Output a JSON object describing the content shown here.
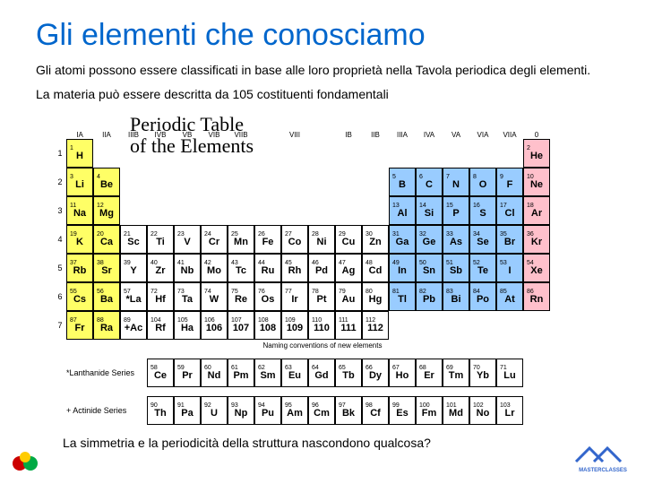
{
  "title": "Gli elementi che conosciamo",
  "intro_line1": "Gli atomi possono essere classificati in base alle loro proprietà nella Tavola periodica degli elementi.",
  "intro_line2": "La materia può essere descritta da 105 costituenti fondamentali",
  "pt_title_line1": "Periodic Table",
  "pt_title_line2": "of the Elements",
  "group_labels_top": [
    "IA",
    "IIA",
    "IIIB",
    "IVB",
    "VB",
    "VIB",
    "VIIB",
    "VIII",
    "IB",
    "IIB",
    "IIIA",
    "IVA",
    "VA",
    "VIA",
    "VIIA",
    "0"
  ],
  "periods": [
    "1",
    "2",
    "3",
    "4",
    "5",
    "6",
    "7"
  ],
  "colors": {
    "yellow": "#ffff66",
    "pink": "#ffc0cb",
    "blue": "#99ccff",
    "white": "#ffffff"
  },
  "elements": [
    {
      "r": 1,
      "c": 1,
      "n": 1,
      "s": "H",
      "col": "yellow"
    },
    {
      "r": 1,
      "c": 18,
      "n": 2,
      "s": "He",
      "col": "pink"
    },
    {
      "r": 2,
      "c": 1,
      "n": 3,
      "s": "Li",
      "col": "yellow"
    },
    {
      "r": 2,
      "c": 2,
      "n": 4,
      "s": "Be",
      "col": "yellow"
    },
    {
      "r": 2,
      "c": 13,
      "n": 5,
      "s": "B",
      "col": "blue"
    },
    {
      "r": 2,
      "c": 14,
      "n": 6,
      "s": "C",
      "col": "blue"
    },
    {
      "r": 2,
      "c": 15,
      "n": 7,
      "s": "N",
      "col": "blue"
    },
    {
      "r": 2,
      "c": 16,
      "n": 8,
      "s": "O",
      "col": "blue"
    },
    {
      "r": 2,
      "c": 17,
      "n": 9,
      "s": "F",
      "col": "blue"
    },
    {
      "r": 2,
      "c": 18,
      "n": 10,
      "s": "Ne",
      "col": "pink"
    },
    {
      "r": 3,
      "c": 1,
      "n": 11,
      "s": "Na",
      "col": "yellow"
    },
    {
      "r": 3,
      "c": 2,
      "n": 12,
      "s": "Mg",
      "col": "yellow"
    },
    {
      "r": 3,
      "c": 13,
      "n": 13,
      "s": "Al",
      "col": "blue"
    },
    {
      "r": 3,
      "c": 14,
      "n": 14,
      "s": "Si",
      "col": "blue"
    },
    {
      "r": 3,
      "c": 15,
      "n": 15,
      "s": "P",
      "col": "blue"
    },
    {
      "r": 3,
      "c": 16,
      "n": 16,
      "s": "S",
      "col": "blue"
    },
    {
      "r": 3,
      "c": 17,
      "n": 17,
      "s": "Cl",
      "col": "blue"
    },
    {
      "r": 3,
      "c": 18,
      "n": 18,
      "s": "Ar",
      "col": "pink"
    },
    {
      "r": 4,
      "c": 1,
      "n": 19,
      "s": "K",
      "col": "yellow"
    },
    {
      "r": 4,
      "c": 2,
      "n": 20,
      "s": "Ca",
      "col": "yellow"
    },
    {
      "r": 4,
      "c": 3,
      "n": 21,
      "s": "Sc",
      "col": "white"
    },
    {
      "r": 4,
      "c": 4,
      "n": 22,
      "s": "Ti",
      "col": "white"
    },
    {
      "r": 4,
      "c": 5,
      "n": 23,
      "s": "V",
      "col": "white"
    },
    {
      "r": 4,
      "c": 6,
      "n": 24,
      "s": "Cr",
      "col": "white"
    },
    {
      "r": 4,
      "c": 7,
      "n": 25,
      "s": "Mn",
      "col": "white"
    },
    {
      "r": 4,
      "c": 8,
      "n": 26,
      "s": "Fe",
      "col": "white"
    },
    {
      "r": 4,
      "c": 9,
      "n": 27,
      "s": "Co",
      "col": "white"
    },
    {
      "r": 4,
      "c": 10,
      "n": 28,
      "s": "Ni",
      "col": "white"
    },
    {
      "r": 4,
      "c": 11,
      "n": 29,
      "s": "Cu",
      "col": "white"
    },
    {
      "r": 4,
      "c": 12,
      "n": 30,
      "s": "Zn",
      "col": "white"
    },
    {
      "r": 4,
      "c": 13,
      "n": 31,
      "s": "Ga",
      "col": "blue"
    },
    {
      "r": 4,
      "c": 14,
      "n": 32,
      "s": "Ge",
      "col": "blue"
    },
    {
      "r": 4,
      "c": 15,
      "n": 33,
      "s": "As",
      "col": "blue"
    },
    {
      "r": 4,
      "c": 16,
      "n": 34,
      "s": "Se",
      "col": "blue"
    },
    {
      "r": 4,
      "c": 17,
      "n": 35,
      "s": "Br",
      "col": "blue"
    },
    {
      "r": 4,
      "c": 18,
      "n": 36,
      "s": "Kr",
      "col": "pink"
    },
    {
      "r": 5,
      "c": 1,
      "n": 37,
      "s": "Rb",
      "col": "yellow"
    },
    {
      "r": 5,
      "c": 2,
      "n": 38,
      "s": "Sr",
      "col": "yellow"
    },
    {
      "r": 5,
      "c": 3,
      "n": 39,
      "s": "Y",
      "col": "white"
    },
    {
      "r": 5,
      "c": 4,
      "n": 40,
      "s": "Zr",
      "col": "white"
    },
    {
      "r": 5,
      "c": 5,
      "n": 41,
      "s": "Nb",
      "col": "white"
    },
    {
      "r": 5,
      "c": 6,
      "n": 42,
      "s": "Mo",
      "col": "white"
    },
    {
      "r": 5,
      "c": 7,
      "n": 43,
      "s": "Tc",
      "col": "white"
    },
    {
      "r": 5,
      "c": 8,
      "n": 44,
      "s": "Ru",
      "col": "white"
    },
    {
      "r": 5,
      "c": 9,
      "n": 45,
      "s": "Rh",
      "col": "white"
    },
    {
      "r": 5,
      "c": 10,
      "n": 46,
      "s": "Pd",
      "col": "white"
    },
    {
      "r": 5,
      "c": 11,
      "n": 47,
      "s": "Ag",
      "col": "white"
    },
    {
      "r": 5,
      "c": 12,
      "n": 48,
      "s": "Cd",
      "col": "white"
    },
    {
      "r": 5,
      "c": 13,
      "n": 49,
      "s": "In",
      "col": "blue"
    },
    {
      "r": 5,
      "c": 14,
      "n": 50,
      "s": "Sn",
      "col": "blue"
    },
    {
      "r": 5,
      "c": 15,
      "n": 51,
      "s": "Sb",
      "col": "blue"
    },
    {
      "r": 5,
      "c": 16,
      "n": 52,
      "s": "Te",
      "col": "blue"
    },
    {
      "r": 5,
      "c": 17,
      "n": 53,
      "s": "I",
      "col": "blue"
    },
    {
      "r": 5,
      "c": 18,
      "n": 54,
      "s": "Xe",
      "col": "pink"
    },
    {
      "r": 6,
      "c": 1,
      "n": 55,
      "s": "Cs",
      "col": "yellow"
    },
    {
      "r": 6,
      "c": 2,
      "n": 56,
      "s": "Ba",
      "col": "yellow"
    },
    {
      "r": 6,
      "c": 3,
      "n": 57,
      "s": "*La",
      "col": "white"
    },
    {
      "r": 6,
      "c": 4,
      "n": 72,
      "s": "Hf",
      "col": "white"
    },
    {
      "r": 6,
      "c": 5,
      "n": 73,
      "s": "Ta",
      "col": "white"
    },
    {
      "r": 6,
      "c": 6,
      "n": 74,
      "s": "W",
      "col": "white"
    },
    {
      "r": 6,
      "c": 7,
      "n": 75,
      "s": "Re",
      "col": "white"
    },
    {
      "r": 6,
      "c": 8,
      "n": 76,
      "s": "Os",
      "col": "white"
    },
    {
      "r": 6,
      "c": 9,
      "n": 77,
      "s": "Ir",
      "col": "white"
    },
    {
      "r": 6,
      "c": 10,
      "n": 78,
      "s": "Pt",
      "col": "white"
    },
    {
      "r": 6,
      "c": 11,
      "n": 79,
      "s": "Au",
      "col": "white"
    },
    {
      "r": 6,
      "c": 12,
      "n": 80,
      "s": "Hg",
      "col": "white"
    },
    {
      "r": 6,
      "c": 13,
      "n": 81,
      "s": "Tl",
      "col": "blue"
    },
    {
      "r": 6,
      "c": 14,
      "n": 82,
      "s": "Pb",
      "col": "blue"
    },
    {
      "r": 6,
      "c": 15,
      "n": 83,
      "s": "Bi",
      "col": "blue"
    },
    {
      "r": 6,
      "c": 16,
      "n": 84,
      "s": "Po",
      "col": "blue"
    },
    {
      "r": 6,
      "c": 17,
      "n": 85,
      "s": "At",
      "col": "blue"
    },
    {
      "r": 6,
      "c": 18,
      "n": 86,
      "s": "Rn",
      "col": "pink"
    },
    {
      "r": 7,
      "c": 1,
      "n": 87,
      "s": "Fr",
      "col": "yellow"
    },
    {
      "r": 7,
      "c": 2,
      "n": 88,
      "s": "Ra",
      "col": "yellow"
    },
    {
      "r": 7,
      "c": 3,
      "n": 89,
      "s": "+Ac",
      "col": "white"
    },
    {
      "r": 7,
      "c": 4,
      "n": 104,
      "s": "Rf",
      "col": "white"
    },
    {
      "r": 7,
      "c": 5,
      "n": 105,
      "s": "Ha",
      "col": "white"
    },
    {
      "r": 7,
      "c": 6,
      "n": 106,
      "s": "106",
      "col": "white"
    },
    {
      "r": 7,
      "c": 7,
      "n": 107,
      "s": "107",
      "col": "white"
    },
    {
      "r": 7,
      "c": 8,
      "n": 108,
      "s": "108",
      "col": "white"
    },
    {
      "r": 7,
      "c": 9,
      "n": 109,
      "s": "109",
      "col": "white"
    },
    {
      "r": 7,
      "c": 10,
      "n": 110,
      "s": "110",
      "col": "white"
    },
    {
      "r": 7,
      "c": 11,
      "n": 111,
      "s": "111",
      "col": "white"
    },
    {
      "r": 7,
      "c": 12,
      "n": 112,
      "s": "112",
      "col": "white"
    }
  ],
  "lanth_label": "*Lanthanide Series",
  "actin_label": "+ Actinide Series",
  "lanthanides": [
    {
      "n": 58,
      "s": "Ce"
    },
    {
      "n": 59,
      "s": "Pr"
    },
    {
      "n": 60,
      "s": "Nd"
    },
    {
      "n": 61,
      "s": "Pm"
    },
    {
      "n": 62,
      "s": "Sm"
    },
    {
      "n": 63,
      "s": "Eu"
    },
    {
      "n": 64,
      "s": "Gd"
    },
    {
      "n": 65,
      "s": "Tb"
    },
    {
      "n": 66,
      "s": "Dy"
    },
    {
      "n": 67,
      "s": "Ho"
    },
    {
      "n": 68,
      "s": "Er"
    },
    {
      "n": 69,
      "s": "Tm"
    },
    {
      "n": 70,
      "s": "Yb"
    },
    {
      "n": 71,
      "s": "Lu"
    }
  ],
  "actinides": [
    {
      "n": 90,
      "s": "Th"
    },
    {
      "n": 91,
      "s": "Pa"
    },
    {
      "n": 92,
      "s": "U"
    },
    {
      "n": 93,
      "s": "Np"
    },
    {
      "n": 94,
      "s": "Pu"
    },
    {
      "n": 95,
      "s": "Am"
    },
    {
      "n": 96,
      "s": "Cm"
    },
    {
      "n": 97,
      "s": "Bk"
    },
    {
      "n": 98,
      "s": "Cf"
    },
    {
      "n": 99,
      "s": "Es"
    },
    {
      "n": 100,
      "s": "Fm"
    },
    {
      "n": 101,
      "s": "Md"
    },
    {
      "n": 102,
      "s": "No"
    },
    {
      "n": 103,
      "s": "Lr"
    }
  ],
  "naming_caption": "Naming conventions of new elements",
  "footer_question": "La simmetria e la periodicità della struttura nascondono qualcosa?",
  "logo_right_text": "MASTERCLASSES"
}
